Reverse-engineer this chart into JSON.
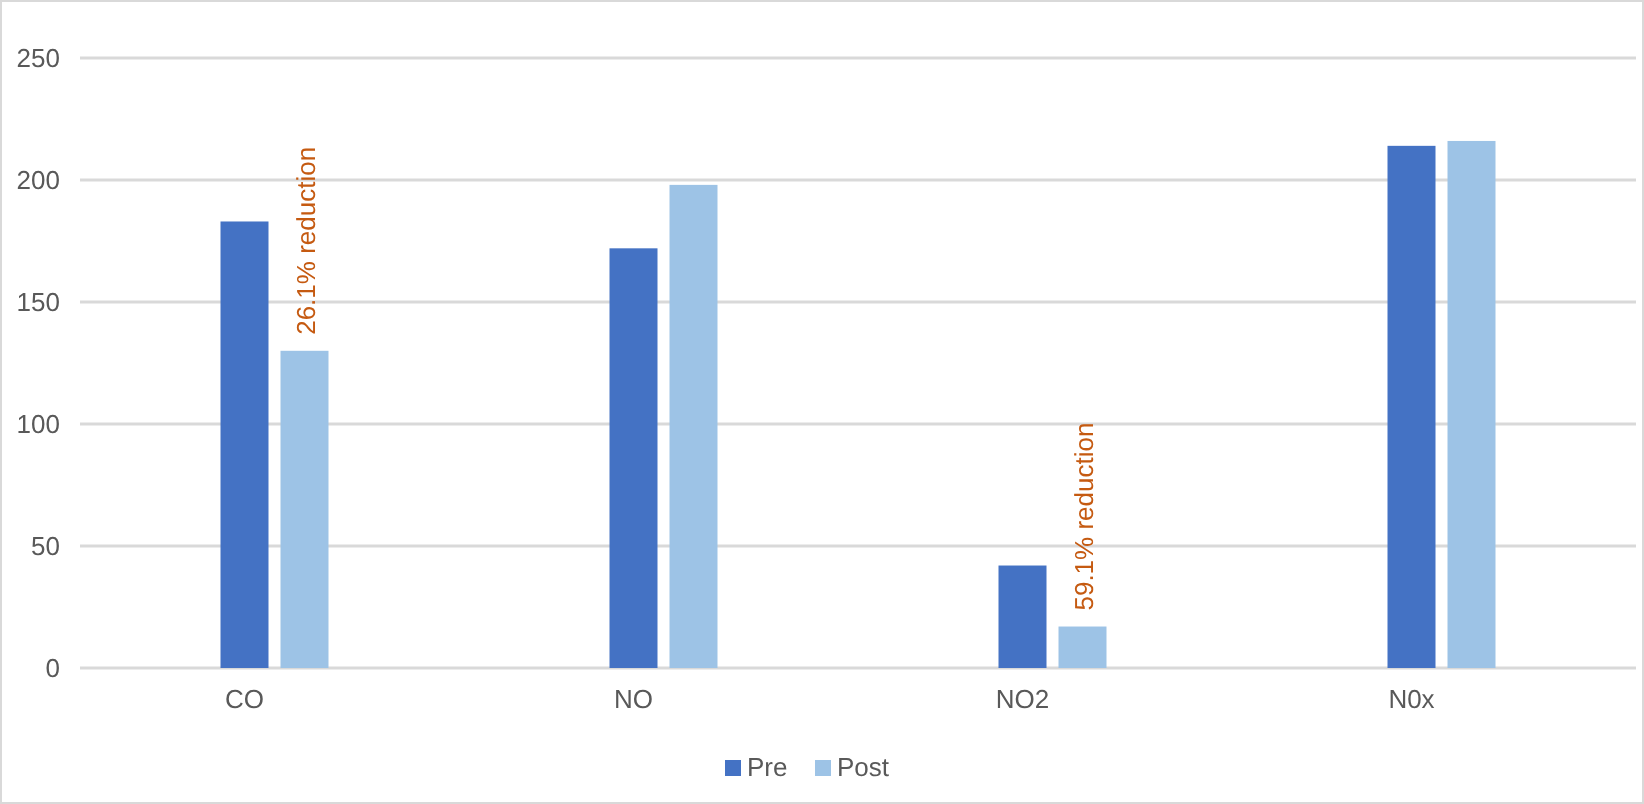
{
  "chart_data": {
    "type": "bar",
    "categories": [
      "CO",
      "NO",
      "NO2",
      "N0x"
    ],
    "series": [
      {
        "name": "Pre",
        "color": "#4472c4",
        "values": [
          183,
          172,
          42,
          214
        ]
      },
      {
        "name": "Post",
        "color": "#9dc3e6",
        "values": [
          130,
          198,
          17,
          216
        ]
      }
    ],
    "ylim": [
      0,
      250
    ],
    "yticks": [
      0,
      50,
      100,
      150,
      200,
      250
    ],
    "grid": "y",
    "legend": "bottom",
    "annotations": [
      "26.1% reduction",
      "59.1% reduction"
    ]
  }
}
